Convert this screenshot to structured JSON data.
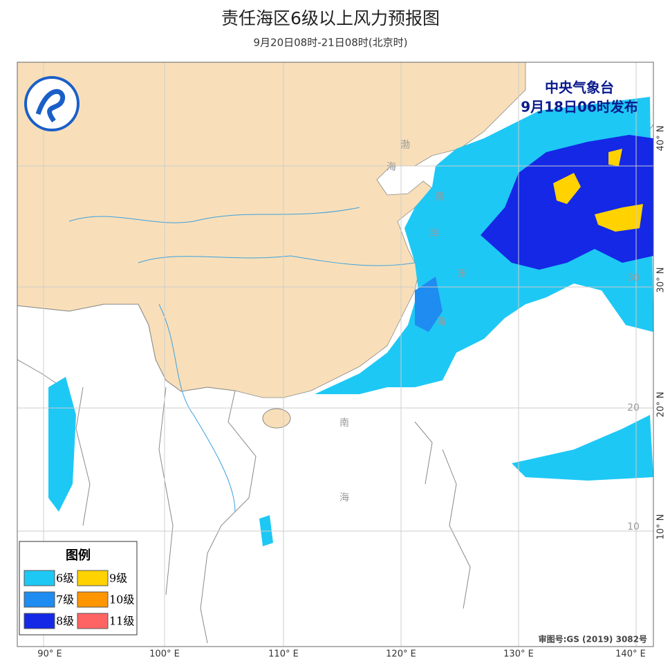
{
  "header": {
    "title": "责任海区6级以上风力预报图",
    "subtitle": "9月20日08时-21日08时(北京时)"
  },
  "issuer": {
    "agency": "中央气象台",
    "time": "9月18日06时发布"
  },
  "legend": {
    "title": "图例",
    "items": [
      {
        "label": "6级",
        "color": "#1ec8f5"
      },
      {
        "label": "9级",
        "color": "#ffd200"
      },
      {
        "label": "7级",
        "color": "#1e8cf0"
      },
      {
        "label": "10级",
        "color": "#ff9600"
      },
      {
        "label": "8级",
        "color": "#1428e6"
      },
      {
        "label": "11级",
        "color": "#ff6464"
      }
    ]
  },
  "sea_labels": [
    "渤",
    "海",
    "黄",
    "海",
    "东",
    "海",
    "南",
    "海"
  ],
  "longitude_labels": [
    "90° E",
    "100° E",
    "110° E",
    "120° E",
    "130° E",
    "140° E"
  ],
  "latitude_labels": [
    "40° N",
    "30° N",
    "20° N",
    "10° N"
  ],
  "grid_labels": [
    "30",
    "20",
    "10"
  ],
  "approval": "审图号:GS (2019) 3082号"
}
